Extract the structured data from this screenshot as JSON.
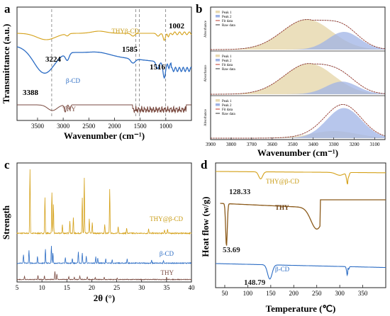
{
  "chart_data": [
    {
      "panel": "a",
      "type": "line",
      "xlabel": "Wavenumber (cm⁻¹)",
      "ylabel": "Transmittance (a.u.)",
      "xlim": [
        3900,
        500
      ],
      "x_ticks": [
        "3500",
        "3000",
        "2500",
        "2000",
        "1500",
        "1000"
      ],
      "series": [
        {
          "name": "THYβ-CD",
          "color": "#d4a017"
        },
        {
          "name": "β-CD",
          "color": "#2b6cc4"
        },
        {
          "name": "THY",
          "color": "#7a4a40"
        }
      ],
      "annotations": [
        "3224",
        "1585",
        "1002",
        "1516",
        "3388"
      ],
      "reference_lines": [
        3224,
        1585,
        1516,
        1002
      ]
    },
    {
      "panel": "b",
      "type": "area",
      "xlabel": "Wavenumber (cm⁻¹)",
      "xlim": [
        3900,
        3050
      ],
      "x_ticks": [
        "3900",
        "3800",
        "3700",
        "3600",
        "3500",
        "3400",
        "3300",
        "3200",
        "3100"
      ],
      "subplot_ylabels": [
        "Absorbance",
        "Absorbance",
        "Absorbance"
      ],
      "legend_entries": [
        "Peak 1",
        "Peak 2",
        "Fit data",
        "Raw data"
      ],
      "subplots": [
        {
          "peak1_center": 3430,
          "peak2_center": 3250,
          "peak1_height": 0.85,
          "peak2_height": 0.5
        },
        {
          "peak1_center": 3420,
          "peak2_center": 3260,
          "peak1_height": 0.85,
          "peak2_height": 0.35
        },
        {
          "peak1_center": 3300,
          "peak2_center": 3250,
          "peak1_height": 0.2,
          "peak2_height": 0.85
        }
      ]
    },
    {
      "panel": "c",
      "type": "line",
      "xlabel": "2θ (°)",
      "ylabel": "Strength",
      "xlim": [
        5,
        40
      ],
      "x_ticks": [
        "5",
        "10",
        "15",
        "20",
        "25",
        "30",
        "35",
        "40"
      ],
      "series": [
        {
          "name": "THY@β-CD",
          "color": "#d4a017"
        },
        {
          "name": "β-CD",
          "color": "#2b6cc4"
        },
        {
          "name": "THY",
          "color": "#7a4a40"
        }
      ]
    },
    {
      "panel": "d",
      "type": "line",
      "xlabel": "Temperature (℃)",
      "ylabel": "Heat flow (w/g)",
      "xlim": [
        30,
        400
      ],
      "x_ticks": [
        "50",
        "100",
        "150",
        "200",
        "250",
        "300",
        "350"
      ],
      "series": [
        {
          "name": "THY@β-CD",
          "color": "#d4a017"
        },
        {
          "name": "THY",
          "color": "#8b5a1a"
        },
        {
          "name": "β-CD",
          "color": "#2b6cc4"
        }
      ],
      "annotations": [
        "128.33",
        "53.69",
        "148.79"
      ]
    }
  ],
  "labels": {
    "a": "a",
    "b": "b",
    "c": "c",
    "d": "d"
  }
}
